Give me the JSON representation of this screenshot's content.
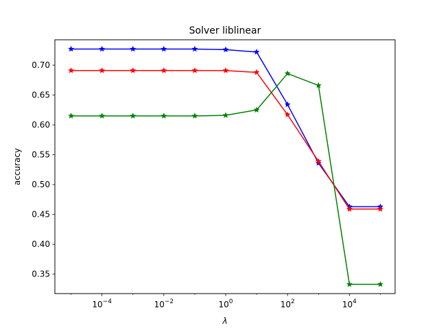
{
  "chart_data": {
    "type": "line",
    "title": "Solver liblinear",
    "xlabel": "λ",
    "ylabel": "accuracy",
    "x_scale": "log",
    "x": [
      1e-05,
      0.0001,
      0.001,
      0.01,
      0.1,
      1,
      10,
      100,
      1000,
      10000,
      100000
    ],
    "xlim": [
      3e-06,
      300000
    ],
    "ylim": [
      0.3175,
      0.7425
    ],
    "grid": false,
    "marker": "star",
    "x_ticks": [
      {
        "value": 0.0001,
        "base": "10",
        "exp": "−4"
      },
      {
        "value": 0.01,
        "base": "10",
        "exp": "−2"
      },
      {
        "value": 1,
        "base": "10",
        "exp": "0"
      },
      {
        "value": 100,
        "base": "10",
        "exp": "2"
      },
      {
        "value": 10000,
        "base": "10",
        "exp": "4"
      }
    ],
    "y_ticks": [
      {
        "value": 0.35,
        "label": "0.35"
      },
      {
        "value": 0.4,
        "label": "0.40"
      },
      {
        "value": 0.45,
        "label": "0.45"
      },
      {
        "value": 0.5,
        "label": "0.50"
      },
      {
        "value": 0.55,
        "label": "0.55"
      },
      {
        "value": 0.6,
        "label": "0.60"
      },
      {
        "value": 0.65,
        "label": "0.65"
      },
      {
        "value": 0.7,
        "label": "0.70"
      }
    ],
    "series": [
      {
        "color": "#0000ff",
        "values": [
          0.727,
          0.727,
          0.727,
          0.727,
          0.727,
          0.726,
          0.722,
          0.634,
          0.536,
          0.463,
          0.463
        ]
      },
      {
        "color": "#ff0000",
        "values": [
          0.691,
          0.691,
          0.691,
          0.691,
          0.691,
          0.691,
          0.688,
          0.617,
          0.539,
          0.459,
          0.459
        ]
      },
      {
        "color": "#008000",
        "values": [
          0.615,
          0.615,
          0.615,
          0.615,
          0.615,
          0.616,
          0.625,
          0.686,
          0.666,
          0.333,
          0.333
        ]
      }
    ]
  }
}
